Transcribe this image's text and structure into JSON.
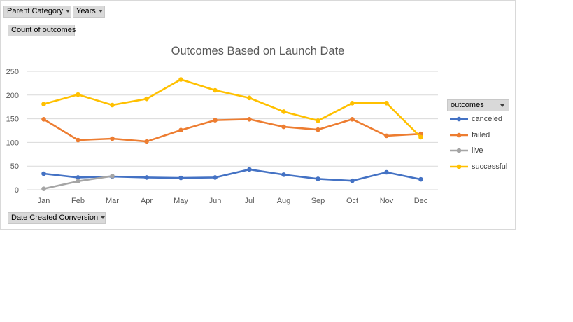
{
  "filters": {
    "parent_category": "Parent Category",
    "years": "Years",
    "value_field": "Count of outcomes",
    "axis_field": "Date Created Conversion",
    "legend_field": "outcomes"
  },
  "chart_data": {
    "type": "line",
    "title": "Outcomes Based on Launch Date",
    "xlabel": "",
    "ylabel": "",
    "categories": [
      "Jan",
      "Feb",
      "Mar",
      "Apr",
      "May",
      "Jun",
      "Jul",
      "Aug",
      "Sep",
      "Oct",
      "Nov",
      "Dec"
    ],
    "ylim": [
      0,
      250
    ],
    "yticks": [
      0,
      50,
      100,
      150,
      200,
      250
    ],
    "grid": true,
    "legend_position": "right",
    "series": [
      {
        "name": "canceled",
        "color": "#4472c4",
        "values": [
          34,
          26,
          28,
          26,
          25,
          26,
          43,
          32,
          23,
          19,
          37,
          22
        ]
      },
      {
        "name": "failed",
        "color": "#ed7d31",
        "values": [
          149,
          105,
          108,
          102,
          126,
          147,
          149,
          133,
          127,
          149,
          114,
          118
        ]
      },
      {
        "name": "live",
        "color": "#a5a5a5",
        "values": [
          2,
          18,
          29,
          null,
          null,
          null,
          null,
          null,
          null,
          null,
          null,
          null
        ]
      },
      {
        "name": "successful",
        "color": "#ffc000",
        "values": [
          181,
          201,
          179,
          192,
          233,
          210,
          194,
          165,
          146,
          183,
          183,
          111
        ]
      }
    ]
  }
}
